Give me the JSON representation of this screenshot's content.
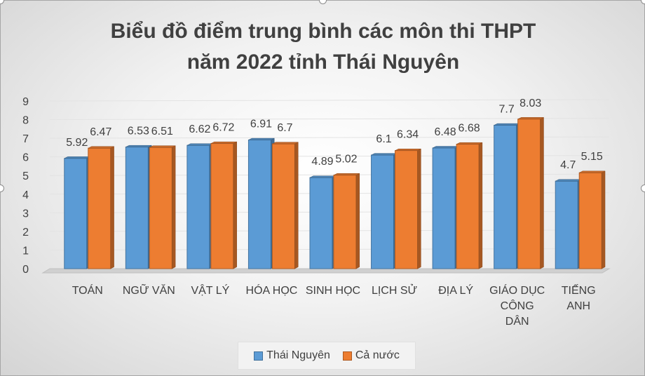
{
  "chart_data": {
    "type": "bar",
    "title_lines": [
      "Biểu đồ điểm trung bình các môn thi THPT",
      "năm 2022 tỉnh Thái Nguyên"
    ],
    "categories": [
      "TOÁN",
      "NGỮ VĂN",
      "VẬT LÝ",
      "HÓA HỌC",
      "SINH HỌC",
      "LỊCH SỬ",
      "ĐỊA LÝ",
      "GIÁO DỤC CÔNG DÂN",
      "TIẾNG ANH"
    ],
    "category_lines": [
      [
        "TOÁN"
      ],
      [
        "NGỮ VĂN"
      ],
      [
        "VẬT LÝ"
      ],
      [
        "HÓA HỌC"
      ],
      [
        "SINH HỌC"
      ],
      [
        "LỊCH SỬ"
      ],
      [
        "ĐỊA LÝ"
      ],
      [
        "GIÁO DỤC",
        "CÔNG",
        "DÂN"
      ],
      [
        "TIẾNG",
        "ANH"
      ]
    ],
    "series": [
      {
        "name": "Thái Nguyên",
        "values": [
          5.92,
          6.53,
          6.62,
          6.91,
          4.89,
          6.1,
          6.48,
          7.7,
          4.7
        ],
        "labels": [
          "5.92",
          "6.53",
          "6.62",
          "6.91",
          "4.89",
          "6.1",
          "6.48",
          "7.7",
          "4.7"
        ],
        "color": "#5b9bd5"
      },
      {
        "name": "Cả nước",
        "values": [
          6.47,
          6.51,
          6.72,
          6.7,
          5.02,
          6.34,
          6.68,
          8.03,
          5.15
        ],
        "labels": [
          "6.47",
          "6.51",
          "6.72",
          "6.7",
          "5.02",
          "6.34",
          "6.68",
          "8.03",
          "5.15"
        ],
        "color": "#ed7d31"
      }
    ],
    "ylim": [
      0,
      9
    ],
    "y_ticks": [
      "0",
      "1",
      "2",
      "3",
      "4",
      "5",
      "6",
      "7",
      "8",
      "9"
    ],
    "grid": true,
    "legend_position": "bottom",
    "style": "3d-clustered-column"
  }
}
